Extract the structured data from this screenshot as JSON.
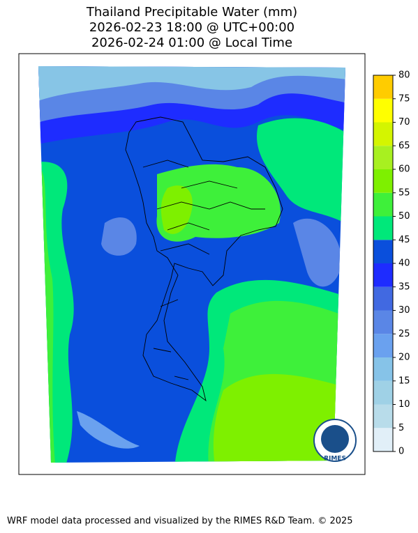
{
  "title": [
    "Thailand Precipitable Water (mm)",
    "2026-02-23 18:00 @ UTC+00:00",
    "2026-02-24 01:00 @ Local Time"
  ],
  "colorbar": {
    "ticks": [
      0,
      5,
      10,
      15,
      20,
      25,
      30,
      35,
      40,
      45,
      50,
      55,
      60,
      65,
      70,
      75,
      80
    ],
    "colors": [
      "#e1eff8",
      "#b8dcea",
      "#9fd1e6",
      "#86c3e8",
      "#6aa1ef",
      "#5a86e6",
      "#4169e1",
      "#1e2cff",
      "#0a4fdc",
      "#00e87a",
      "#3ef03a",
      "#7ef000",
      "#a8f020",
      "#d4f500",
      "#ffff00",
      "#ffcc00"
    ]
  },
  "logo": "RIMES",
  "footer": "WRF model data processed and visualized by the RIMES R&D Team. © 2025"
}
